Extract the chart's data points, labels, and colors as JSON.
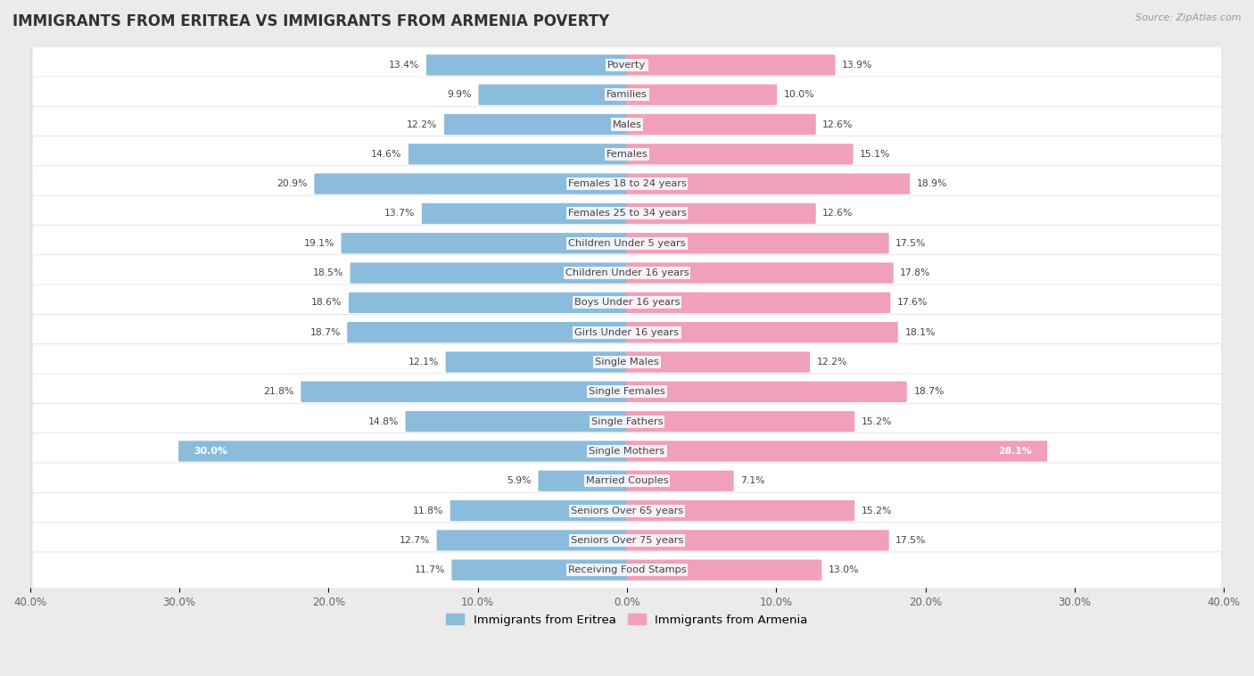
{
  "title": "IMMIGRANTS FROM ERITREA VS IMMIGRANTS FROM ARMENIA POVERTY",
  "source": "Source: ZipAtlas.com",
  "categories": [
    "Poverty",
    "Families",
    "Males",
    "Females",
    "Females 18 to 24 years",
    "Females 25 to 34 years",
    "Children Under 5 years",
    "Children Under 16 years",
    "Boys Under 16 years",
    "Girls Under 16 years",
    "Single Males",
    "Single Females",
    "Single Fathers",
    "Single Mothers",
    "Married Couples",
    "Seniors Over 65 years",
    "Seniors Over 75 years",
    "Receiving Food Stamps"
  ],
  "eritrea_values": [
    13.4,
    9.9,
    12.2,
    14.6,
    20.9,
    13.7,
    19.1,
    18.5,
    18.6,
    18.7,
    12.1,
    21.8,
    14.8,
    30.0,
    5.9,
    11.8,
    12.7,
    11.7
  ],
  "armenia_values": [
    13.9,
    10.0,
    12.6,
    15.1,
    18.9,
    12.6,
    17.5,
    17.8,
    17.6,
    18.1,
    12.2,
    18.7,
    15.2,
    28.1,
    7.1,
    15.2,
    17.5,
    13.0
  ],
  "eritrea_color": "#8BBCDC",
  "armenia_color": "#F0A0B8",
  "eritrea_label": "Immigrants from Eritrea",
  "armenia_label": "Immigrants from Armenia",
  "xlim": 40.0,
  "background_color": "#EBEBEB",
  "row_bg_color": "#F5F5F5",
  "row_alt_color": "#E8E8E8",
  "title_fontsize": 12,
  "bar_height": 0.6,
  "label_fontsize": 8.2,
  "value_fontsize": 7.8,
  "text_color": "#444444",
  "white_text_color": "#FFFFFF"
}
